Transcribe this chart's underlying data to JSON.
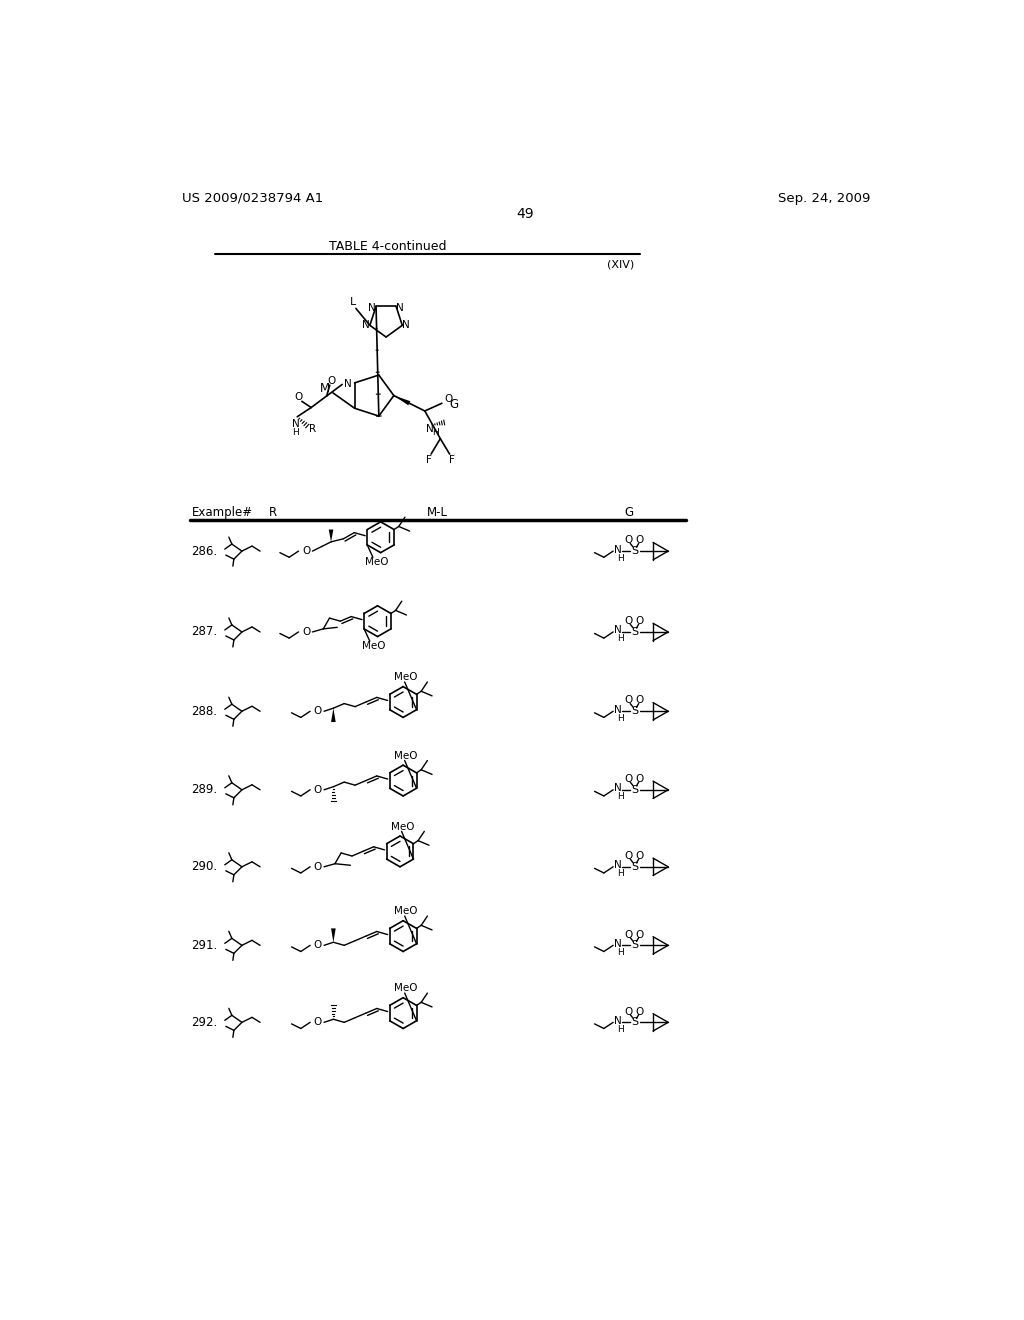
{
  "patent_number": "US 2009/0238794 A1",
  "date": "Sep. 24, 2009",
  "page_number": "49",
  "table_title": "TABLE 4-continued",
  "structure_label": "(XIV)",
  "header_cols": [
    "Example#",
    "R",
    "M-L",
    "G"
  ],
  "examples": [
    286,
    287,
    288,
    289,
    290,
    291,
    292
  ],
  "bg": "#ffffff"
}
